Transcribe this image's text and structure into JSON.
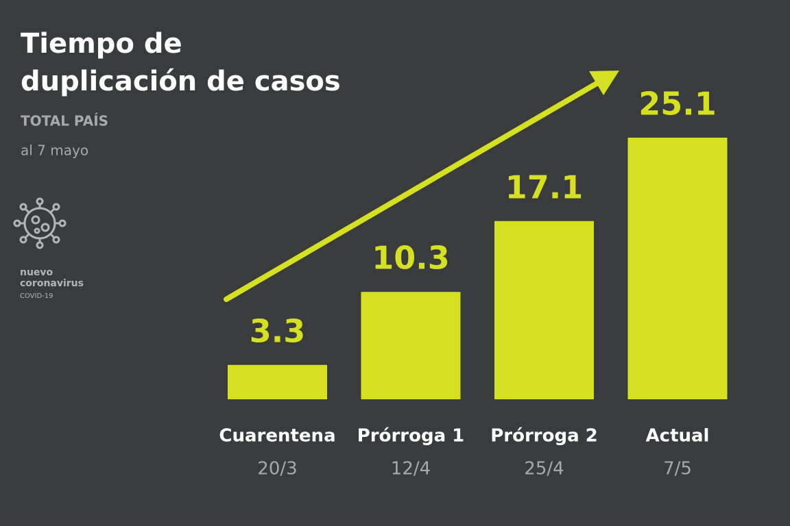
{
  "chart_data": {
    "type": "bar",
    "title": [
      "Tiempo de",
      "duplicación de casos"
    ],
    "subtitle": "TOTAL PAÍS",
    "date_note": "al 7 mayo",
    "logo_text": [
      "nuevo",
      "coronavirus",
      "COVID-19"
    ],
    "categories": [
      "Cuarentena",
      "Prórroga 1",
      "Prórroga 2",
      "Actual"
    ],
    "dates": [
      "20/3",
      "12/4",
      "25/4",
      "7/5"
    ],
    "values": [
      3.3,
      10.3,
      17.1,
      25.1
    ],
    "color": "#d4e021"
  }
}
